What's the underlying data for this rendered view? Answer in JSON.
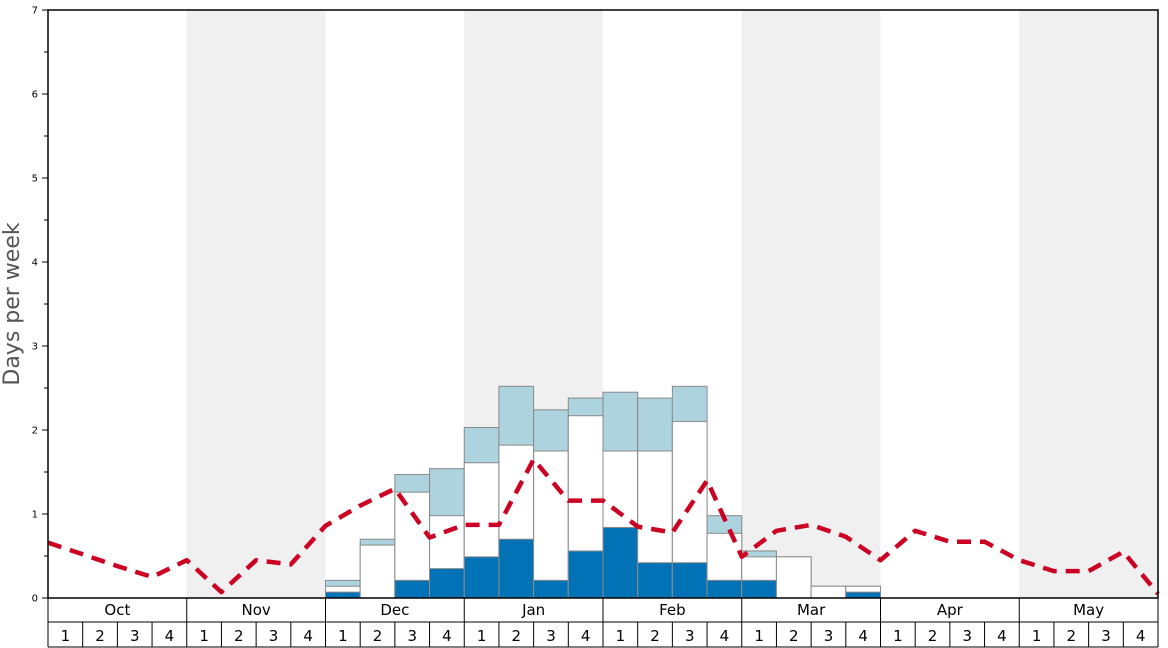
{
  "chart_data": {
    "type": "bar",
    "ylabel": "Days per week",
    "ylim": [
      0,
      7
    ],
    "yticks": [
      0,
      1,
      2,
      3,
      4,
      5,
      6,
      7
    ],
    "months": [
      "Oct",
      "Nov",
      "Dec",
      "Jan",
      "Feb",
      "Mar",
      "Apr",
      "May"
    ],
    "weeks": [
      "1",
      "2",
      "3",
      "4"
    ],
    "colors": {
      "dark": "#0072b5",
      "light": "#add3df",
      "white": "#ffffff",
      "trend": "#cc0022",
      "shade": "#f0f0f0"
    },
    "series": [
      {
        "values": [
          0,
          0,
          0,
          0,
          0,
          0,
          0,
          0,
          0.07,
          0,
          0.21,
          0.35,
          0.49,
          0.7,
          0.21,
          0.56,
          0.84,
          0.42,
          0.42,
          0.21,
          0.21,
          0,
          0,
          0.07,
          0,
          0,
          0,
          0,
          0,
          0,
          0,
          0
        ]
      },
      {
        "values": [
          0,
          0,
          0,
          0,
          0,
          0,
          0,
          0,
          0.14,
          0.63,
          1.26,
          0.98,
          1.61,
          1.82,
          1.75,
          2.17,
          1.75,
          1.75,
          2.1,
          0.77,
          0.49,
          0.49,
          0.14,
          0.14,
          0,
          0,
          0,
          0,
          0,
          0,
          0,
          0
        ]
      },
      {
        "values": [
          0,
          0,
          0,
          0,
          0,
          0,
          0,
          0,
          0.21,
          0.7,
          1.47,
          1.54,
          2.03,
          2.52,
          2.24,
          2.38,
          2.45,
          2.38,
          2.52,
          0.98,
          0.56,
          0.49,
          0.14,
          0.14,
          0,
          0,
          0,
          0,
          0,
          0,
          0,
          0
        ]
      },
      {
        "line": true,
        "values": [
          0.66,
          0.52,
          0.38,
          0.25,
          0.45,
          0.07,
          0.45,
          0.4,
          0.86,
          1.1,
          1.3,
          0.72,
          0.87,
          0.87,
          1.65,
          1.16,
          1.16,
          0.85,
          0.78,
          1.4,
          0.49,
          0.8,
          0.87,
          0.73,
          0.45,
          0.8,
          0.67,
          0.67,
          0.45,
          0.32,
          0.32,
          0.55,
          0.05
        ]
      }
    ]
  }
}
